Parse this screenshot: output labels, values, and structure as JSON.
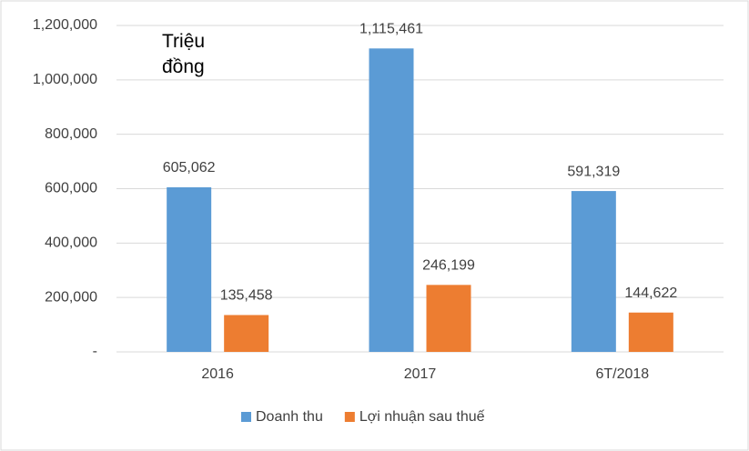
{
  "chart_data": {
    "type": "bar",
    "annotation": "Triệu đồng",
    "categories": [
      "2016",
      "2017",
      "6T/2018"
    ],
    "series": [
      {
        "name": "Doanh thu",
        "color": "#5b9bd5",
        "values": [
          605062,
          1115461,
          591319
        ],
        "value_labels": [
          "605,062",
          "1,115,461",
          "591,319"
        ]
      },
      {
        "name": "Lợi nhuận sau thuế",
        "color": "#ed7d31",
        "values": [
          135458,
          246199,
          144622
        ],
        "value_labels": [
          "135,458",
          "246,199",
          "144,622"
        ]
      }
    ],
    "ylim": [
      0,
      1200000
    ],
    "yticks": [
      {
        "value": 0,
        "label": "-"
      },
      {
        "value": 200000,
        "label": "200,000"
      },
      {
        "value": 400000,
        "label": "400,000"
      },
      {
        "value": 600000,
        "label": "600,000"
      },
      {
        "value": 800000,
        "label": "800,000"
      },
      {
        "value": 1000000,
        "label": "1,000,000"
      },
      {
        "value": 1200000,
        "label": "1,200,000"
      }
    ],
    "grid": true,
    "legend": "bottom"
  }
}
